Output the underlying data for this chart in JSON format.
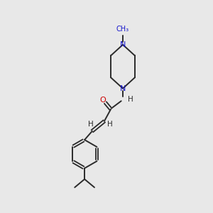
{
  "bg_color": "#e8e8e8",
  "bond_color": "#2a2a2a",
  "n_color": "#1414cc",
  "o_color": "#cc0000",
  "methyl_label": "CH₃",
  "h_label": "H",
  "o_label": "O",
  "n_label": "N"
}
